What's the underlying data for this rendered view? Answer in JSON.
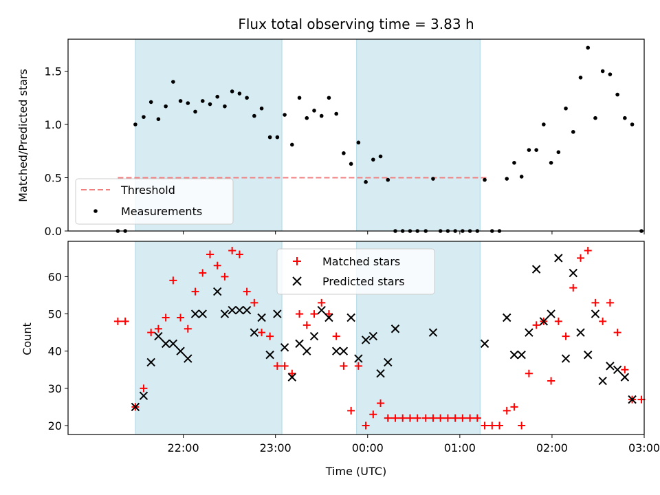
{
  "colors": {
    "shade": "#add8e6",
    "threshold": "#f08080",
    "measurement": "#000000",
    "matched": "#ff0000",
    "predicted": "#000000"
  },
  "chart_data": [
    {
      "type": "scatter",
      "title": "Flux total observing time = 3.83 h",
      "xlabel": "",
      "ylabel": "Matched/Predicted stars",
      "ylim": [
        0,
        1.8
      ],
      "yticks": [
        0.0,
        0.5,
        1.0,
        1.5
      ],
      "ytick_labels": [
        "0.0",
        "0.5",
        "1.0",
        "1.5"
      ],
      "x_unit": "hours since 21:00 UTC",
      "shaded_regions": [
        [
          0.48,
          2.07
        ],
        [
          2.88,
          4.22
        ]
      ],
      "threshold": {
        "name": "Threshold",
        "value": 0.5,
        "x_range": [
          0.29,
          4.29
        ]
      },
      "legend": {
        "placement": "lower-left",
        "entries": [
          "Threshold",
          "Measurements"
        ]
      },
      "series": [
        {
          "name": "Measurements",
          "points": [
            [
              0.29,
              0.0
            ],
            [
              0.37,
              0.0
            ],
            [
              0.48,
              1.0
            ],
            [
              0.57,
              1.07
            ],
            [
              0.65,
              1.21
            ],
            [
              0.73,
              1.05
            ],
            [
              0.81,
              1.17
            ],
            [
              0.89,
              1.4
            ],
            [
              0.97,
              1.22
            ],
            [
              1.05,
              1.2
            ],
            [
              1.13,
              1.12
            ],
            [
              1.21,
              1.22
            ],
            [
              1.29,
              1.19
            ],
            [
              1.37,
              1.26
            ],
            [
              1.45,
              1.17
            ],
            [
              1.53,
              1.31
            ],
            [
              1.61,
              1.29
            ],
            [
              1.69,
              1.25
            ],
            [
              1.77,
              1.08
            ],
            [
              1.85,
              1.15
            ],
            [
              1.94,
              0.88
            ],
            [
              2.02,
              0.88
            ],
            [
              2.1,
              1.09
            ],
            [
              2.18,
              0.81
            ],
            [
              2.26,
              1.25
            ],
            [
              2.34,
              1.06
            ],
            [
              2.42,
              1.13
            ],
            [
              2.5,
              1.08
            ],
            [
              2.58,
              1.25
            ],
            [
              2.66,
              1.1
            ],
            [
              2.74,
              0.73
            ],
            [
              2.82,
              0.63
            ],
            [
              2.9,
              0.83
            ],
            [
              2.98,
              0.46
            ],
            [
              3.06,
              0.67
            ],
            [
              3.14,
              0.7
            ],
            [
              3.22,
              0.48
            ],
            [
              3.3,
              0.0
            ],
            [
              3.38,
              0.0
            ],
            [
              3.46,
              0.0
            ],
            [
              3.54,
              0.0
            ],
            [
              3.63,
              0.0
            ],
            [
              3.71,
              0.49
            ],
            [
              3.79,
              0.0
            ],
            [
              3.87,
              0.0
            ],
            [
              3.95,
              0.0
            ],
            [
              4.03,
              0.0
            ],
            [
              4.11,
              0.0
            ],
            [
              4.19,
              0.0
            ],
            [
              4.27,
              0.48
            ],
            [
              4.35,
              0.0
            ],
            [
              4.43,
              0.0
            ],
            [
              4.51,
              0.49
            ],
            [
              4.59,
              0.64
            ],
            [
              4.67,
              0.51
            ],
            [
              4.75,
              0.76
            ],
            [
              4.83,
              0.76
            ],
            [
              4.91,
              1.0
            ],
            [
              4.99,
              0.64
            ],
            [
              5.07,
              0.74
            ],
            [
              5.15,
              1.15
            ],
            [
              5.23,
              0.93
            ],
            [
              5.31,
              1.44
            ],
            [
              5.39,
              1.72
            ],
            [
              5.47,
              1.06
            ],
            [
              5.55,
              1.5
            ],
            [
              5.63,
              1.47
            ],
            [
              5.71,
              1.28
            ],
            [
              5.79,
              1.06
            ],
            [
              5.87,
              1.0
            ],
            [
              5.97,
              0.0
            ]
          ]
        }
      ]
    },
    {
      "type": "scatter",
      "title": "",
      "xlabel": "Time (UTC)",
      "ylabel": "Count",
      "ylim": [
        17.6,
        69.5
      ],
      "yticks": [
        20,
        30,
        40,
        50,
        60
      ],
      "ytick_labels": [
        "20",
        "30",
        "40",
        "50",
        "60"
      ],
      "x_unit": "hours since 21:00 UTC",
      "xlim": [
        -0.25,
        6.0
      ],
      "xticks": [
        1,
        2,
        3,
        4,
        5,
        6
      ],
      "xtick_labels": [
        "22:00",
        "23:00",
        "00:00",
        "01:00",
        "02:00",
        "03:00"
      ],
      "shaded_regions": [
        [
          0.48,
          2.07
        ],
        [
          2.88,
          4.22
        ]
      ],
      "legend": {
        "placement": "upper-center",
        "entries": [
          "Matched stars",
          "Predicted stars"
        ]
      },
      "series": [
        {
          "name": "Matched stars",
          "marker": "plus",
          "points": [
            [
              0.29,
              48
            ],
            [
              0.37,
              48
            ],
            [
              0.48,
              25
            ],
            [
              0.57,
              30
            ],
            [
              0.65,
              45
            ],
            [
              0.73,
              46
            ],
            [
              0.81,
              49
            ],
            [
              0.89,
              59
            ],
            [
              0.97,
              49
            ],
            [
              1.05,
              46
            ],
            [
              1.13,
              56
            ],
            [
              1.21,
              61
            ],
            [
              1.29,
              66
            ],
            [
              1.37,
              63
            ],
            [
              1.45,
              60
            ],
            [
              1.53,
              67
            ],
            [
              1.61,
              66
            ],
            [
              1.69,
              56
            ],
            [
              1.77,
              53
            ],
            [
              1.85,
              45
            ],
            [
              1.94,
              44
            ],
            [
              2.02,
              36
            ],
            [
              2.1,
              36
            ],
            [
              2.18,
              34
            ],
            [
              2.26,
              50
            ],
            [
              2.34,
              47
            ],
            [
              2.42,
              50
            ],
            [
              2.5,
              53
            ],
            [
              2.58,
              50
            ],
            [
              2.66,
              44
            ],
            [
              2.74,
              36
            ],
            [
              2.82,
              24
            ],
            [
              2.9,
              36
            ],
            [
              2.98,
              20
            ],
            [
              3.06,
              23
            ],
            [
              3.14,
              26
            ],
            [
              3.22,
              22
            ],
            [
              3.3,
              22
            ],
            [
              3.38,
              22
            ],
            [
              3.46,
              22
            ],
            [
              3.54,
              22
            ],
            [
              3.63,
              22
            ],
            [
              3.71,
              22
            ],
            [
              3.79,
              22
            ],
            [
              3.87,
              22
            ],
            [
              3.95,
              22
            ],
            [
              4.03,
              22
            ],
            [
              4.11,
              22
            ],
            [
              4.19,
              22
            ],
            [
              4.27,
              20
            ],
            [
              4.35,
              20
            ],
            [
              4.43,
              20
            ],
            [
              4.51,
              24
            ],
            [
              4.59,
              25
            ],
            [
              4.67,
              20
            ],
            [
              4.75,
              34
            ],
            [
              4.83,
              47
            ],
            [
              4.91,
              48
            ],
            [
              4.99,
              32
            ],
            [
              5.07,
              48
            ],
            [
              5.15,
              44
            ],
            [
              5.23,
              57
            ],
            [
              5.31,
              65
            ],
            [
              5.39,
              67
            ],
            [
              5.47,
              53
            ],
            [
              5.55,
              48
            ],
            [
              5.63,
              53
            ],
            [
              5.71,
              45
            ],
            [
              5.79,
              35
            ],
            [
              5.87,
              27
            ],
            [
              5.97,
              27
            ]
          ]
        },
        {
          "name": "Predicted stars",
          "marker": "x",
          "points": [
            [
              0.48,
              25
            ],
            [
              0.57,
              28
            ],
            [
              0.65,
              37
            ],
            [
              0.73,
              44
            ],
            [
              0.81,
              42
            ],
            [
              0.89,
              42
            ],
            [
              0.97,
              40
            ],
            [
              1.05,
              38
            ],
            [
              1.13,
              50
            ],
            [
              1.21,
              50
            ],
            [
              1.37,
              56
            ],
            [
              1.45,
              50
            ],
            [
              1.53,
              51
            ],
            [
              1.61,
              51
            ],
            [
              1.69,
              51
            ],
            [
              1.77,
              45
            ],
            [
              1.85,
              49
            ],
            [
              1.94,
              39
            ],
            [
              2.02,
              50
            ],
            [
              2.1,
              41
            ],
            [
              2.18,
              33
            ],
            [
              2.26,
              42
            ],
            [
              2.34,
              40
            ],
            [
              2.42,
              44
            ],
            [
              2.5,
              51
            ],
            [
              2.58,
              49
            ],
            [
              2.66,
              40
            ],
            [
              2.74,
              40
            ],
            [
              2.82,
              49
            ],
            [
              2.9,
              38
            ],
            [
              2.98,
              43
            ],
            [
              3.06,
              44
            ],
            [
              3.14,
              34
            ],
            [
              3.22,
              37
            ],
            [
              3.3,
              46
            ],
            [
              3.71,
              45
            ],
            [
              4.27,
              42
            ],
            [
              4.51,
              49
            ],
            [
              4.59,
              39
            ],
            [
              4.67,
              39
            ],
            [
              4.75,
              45
            ],
            [
              4.83,
              62
            ],
            [
              4.91,
              48
            ],
            [
              4.99,
              50
            ],
            [
              5.07,
              65
            ],
            [
              5.15,
              38
            ],
            [
              5.23,
              61
            ],
            [
              5.31,
              45
            ],
            [
              5.39,
              39
            ],
            [
              5.47,
              50
            ],
            [
              5.55,
              32
            ],
            [
              5.63,
              36
            ],
            [
              5.71,
              35
            ],
            [
              5.79,
              33
            ],
            [
              5.87,
              27
            ]
          ]
        }
      ]
    }
  ]
}
